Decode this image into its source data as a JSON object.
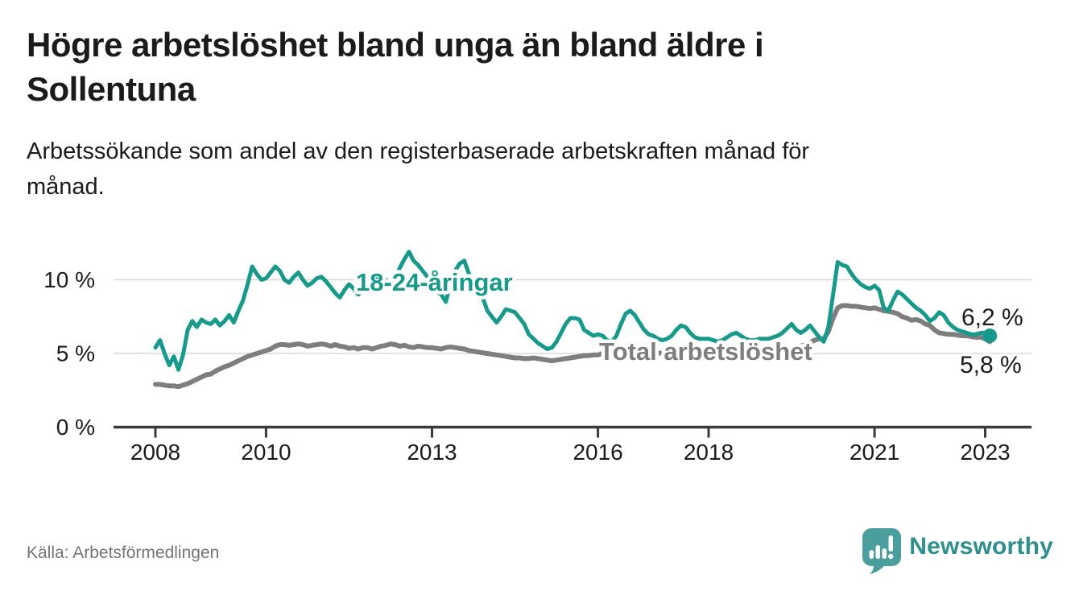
{
  "header": {
    "title": "Högre arbetslöshet bland unga än bland äldre i\nSollentuna",
    "subtitle": "Arbetssökande som andel av den registerbaserade arbetskraften månad för\nmånad."
  },
  "footer": {
    "source": "Källa: Arbetsförmedlingen",
    "logo_text": "Newsworthy"
  },
  "colors": {
    "youth_line": "#17998c",
    "total_line": "#7e7e7e",
    "axis": "#3b3b3b",
    "gridline": "#d8d8d8",
    "text": "#1b1b1b",
    "value_label": "#1b1b1b",
    "logo_icon": "#4a9e9e",
    "logo_text": "#2f8f8d",
    "source_text": "#757575"
  },
  "chart_data": {
    "type": "line",
    "unit": "%",
    "frequency": "monthly",
    "start_month": "2008-01",
    "end_month": "2023-02",
    "grid": "horizontal",
    "ylim": [
      0,
      12.5
    ],
    "y_ticks": [
      {
        "value": 0,
        "label": "0 %"
      },
      {
        "value": 5,
        "label": "5 %"
      },
      {
        "value": 10,
        "label": "10 %"
      }
    ],
    "x_ticks": [
      {
        "year": 2008,
        "label": "2008"
      },
      {
        "year": 2010,
        "label": "2010"
      },
      {
        "year": 2013,
        "label": "2013"
      },
      {
        "year": 2016,
        "label": "2016"
      },
      {
        "year": 2018,
        "label": "2018"
      },
      {
        "year": 2021,
        "label": "2021"
      },
      {
        "year": 2023,
        "label": "2023"
      }
    ],
    "series": [
      {
        "name": "18-24-åringar",
        "color": "#17998c",
        "end_label": "6,2 %",
        "end_value": 6.2,
        "values": [
          5.4,
          5.9,
          5.0,
          4.2,
          4.8,
          3.9,
          4.9,
          6.6,
          7.2,
          6.8,
          7.3,
          7.1,
          7.0,
          7.3,
          6.9,
          7.2,
          7.6,
          7.1,
          7.9,
          8.6,
          9.7,
          10.9,
          10.4,
          10.0,
          10.1,
          10.5,
          10.9,
          10.6,
          10.0,
          9.8,
          10.2,
          10.5,
          10.0,
          9.6,
          9.8,
          10.1,
          10.2,
          9.9,
          9.5,
          9.1,
          8.8,
          9.3,
          9.7,
          9.4,
          9.0,
          9.3,
          9.6,
          9.9,
          10.1,
          10.2,
          10.0,
          9.7,
          10.1,
          10.8,
          11.4,
          11.9,
          11.3,
          11.0,
          10.6,
          10.2,
          10.0,
          9.2,
          9.0,
          8.5,
          9.8,
          10.6,
          11.1,
          11.3,
          10.4,
          9.4,
          8.9,
          8.8,
          7.9,
          7.5,
          7.1,
          7.5,
          8.0,
          7.9,
          7.8,
          7.4,
          7.0,
          6.3,
          6.0,
          5.7,
          5.5,
          5.3,
          5.4,
          5.8,
          6.4,
          7.0,
          7.4,
          7.4,
          7.3,
          6.6,
          6.4,
          6.2,
          6.3,
          6.2,
          5.9,
          5.8,
          6.2,
          7.0,
          7.7,
          7.9,
          7.6,
          7.1,
          6.6,
          6.3,
          6.2,
          6.0,
          5.9,
          6.0,
          6.2,
          6.6,
          6.9,
          6.8,
          6.4,
          6.1,
          6.0,
          6.0,
          6.0,
          5.9,
          5.8,
          5.9,
          6.1,
          6.3,
          6.4,
          6.2,
          6.0,
          5.9,
          5.9,
          6.0,
          6.0,
          6.0,
          6.1,
          6.2,
          6.4,
          6.7,
          7.0,
          6.6,
          6.4,
          6.6,
          6.9,
          6.5,
          6.1,
          5.8,
          6.8,
          9.0,
          11.2,
          11.0,
          10.9,
          10.4,
          10.0,
          9.7,
          9.5,
          9.4,
          9.6,
          9.3,
          8.1,
          7.9,
          8.6,
          9.2,
          9.0,
          8.7,
          8.4,
          8.1,
          7.9,
          7.6,
          7.2,
          7.4,
          7.8,
          7.6,
          7.1,
          6.8,
          6.6,
          6.5,
          6.4,
          6.3,
          6.3,
          6.4,
          6.4,
          6.2
        ]
      },
      {
        "name": "Total arbetslöshet",
        "color": "#7e7e7e",
        "end_label": "5,8 %",
        "end_value": 5.8,
        "values": [
          2.9,
          2.9,
          2.85,
          2.8,
          2.8,
          2.75,
          2.85,
          2.95,
          3.1,
          3.25,
          3.4,
          3.55,
          3.6,
          3.8,
          3.95,
          4.1,
          4.2,
          4.35,
          4.5,
          4.65,
          4.8,
          4.9,
          5.0,
          5.1,
          5.2,
          5.3,
          5.5,
          5.6,
          5.6,
          5.55,
          5.6,
          5.65,
          5.6,
          5.5,
          5.55,
          5.6,
          5.65,
          5.6,
          5.5,
          5.6,
          5.5,
          5.45,
          5.35,
          5.4,
          5.3,
          5.4,
          5.4,
          5.3,
          5.4,
          5.5,
          5.55,
          5.65,
          5.6,
          5.5,
          5.55,
          5.45,
          5.4,
          5.5,
          5.45,
          5.4,
          5.4,
          5.35,
          5.3,
          5.4,
          5.45,
          5.4,
          5.35,
          5.3,
          5.2,
          5.15,
          5.1,
          5.05,
          5.0,
          4.95,
          4.9,
          4.85,
          4.8,
          4.75,
          4.7,
          4.7,
          4.65,
          4.65,
          4.7,
          4.65,
          4.6,
          4.55,
          4.5,
          4.55,
          4.6,
          4.65,
          4.7,
          4.75,
          4.8,
          4.85,
          4.85,
          4.9,
          4.9,
          5.0,
          5.0,
          4.95,
          5.0,
          5.1,
          5.15,
          5.1,
          5.1,
          5.0,
          5.0,
          5.1,
          5.1,
          5.05,
          5.0,
          5.0,
          5.0,
          5.05,
          5.1,
          5.1,
          5.0,
          5.0,
          5.0,
          5.0,
          5.0,
          4.95,
          4.9,
          4.85,
          4.85,
          4.9,
          4.9,
          4.9,
          4.85,
          4.85,
          4.85,
          4.9,
          4.9,
          4.95,
          5.0,
          5.05,
          5.1,
          5.2,
          5.3,
          5.4,
          5.5,
          5.6,
          5.75,
          5.9,
          6.0,
          6.0,
          6.5,
          7.4,
          8.1,
          8.25,
          8.25,
          8.2,
          8.2,
          8.15,
          8.1,
          8.05,
          8.1,
          8.0,
          7.9,
          7.85,
          7.8,
          7.7,
          7.5,
          7.4,
          7.25,
          7.3,
          7.2,
          7.0,
          6.9,
          6.6,
          6.4,
          6.35,
          6.3,
          6.3,
          6.25,
          6.2,
          6.2,
          6.15,
          6.1,
          6.1,
          6.0,
          5.8
        ]
      }
    ]
  }
}
